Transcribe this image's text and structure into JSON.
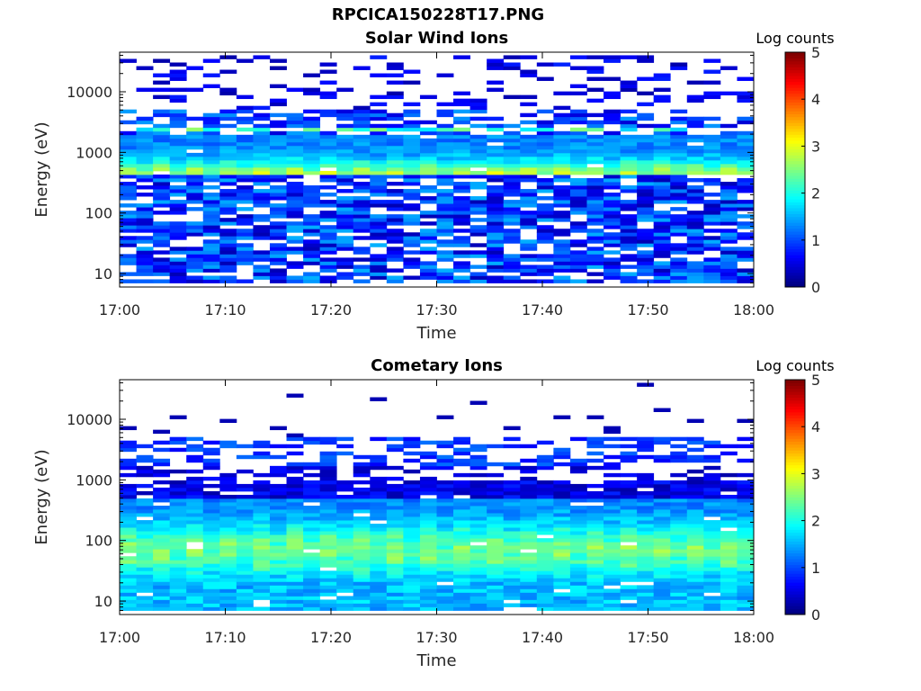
{
  "figure": {
    "title": "RPCICA150228T17.PNG"
  },
  "chart_data": [
    {
      "type": "heatmap",
      "title": "Solar Wind Ions",
      "xlabel": "Time",
      "ylabel": "Energy (eV)",
      "xlim": [
        "17:00",
        "18:00"
      ],
      "xticks": [
        "17:00",
        "17:10",
        "17:20",
        "17:30",
        "17:40",
        "17:50",
        "18:00"
      ],
      "ylim": [
        6,
        45000
      ],
      "yscale": "log",
      "yticks": [
        10,
        100,
        1000,
        10000
      ],
      "ytick_labels": [
        "10",
        "100",
        "1000",
        "10000"
      ],
      "colorbar": {
        "label": "Log counts",
        "range": [
          0,
          5
        ],
        "ticks": [
          "0",
          "1",
          "2",
          "3",
          "4",
          "5"
        ],
        "colormap": "jet"
      },
      "dominant_band_eV": [
        100,
        1700
      ],
      "peak_log_counts_approx": 2.2,
      "grid": false
    },
    {
      "type": "heatmap",
      "title": "Cometary Ions",
      "xlabel": "Time",
      "ylabel": "Energy (eV)",
      "xlim": [
        "17:00",
        "18:00"
      ],
      "xticks": [
        "17:00",
        "17:10",
        "17:20",
        "17:30",
        "17:40",
        "17:50",
        "18:00"
      ],
      "ylim": [
        6,
        45000
      ],
      "yscale": "log",
      "yticks": [
        10,
        100,
        1000,
        10000
      ],
      "ytick_labels": [
        "10",
        "100",
        "1000",
        "10000"
      ],
      "colorbar": {
        "label": "Log counts",
        "range": [
          0,
          5
        ],
        "ticks": [
          "0",
          "1",
          "2",
          "3",
          "4",
          "5"
        ],
        "colormap": "jet"
      },
      "dominant_band_eV": [
        10,
        400
      ],
      "peak_log_counts_approx": 2.4,
      "grid": false
    }
  ]
}
